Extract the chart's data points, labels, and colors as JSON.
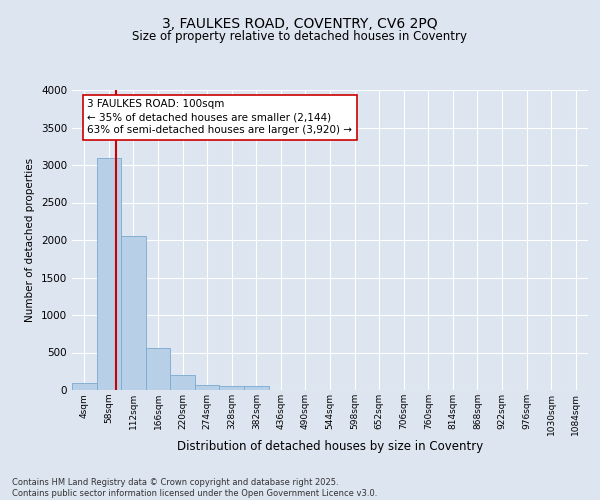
{
  "title_line1": "3, FAULKES ROAD, COVENTRY, CV6 2PQ",
  "title_line2": "Size of property relative to detached houses in Coventry",
  "xlabel": "Distribution of detached houses by size in Coventry",
  "ylabel": "Number of detached properties",
  "bin_labels": [
    "4sqm",
    "58sqm",
    "112sqm",
    "166sqm",
    "220sqm",
    "274sqm",
    "328sqm",
    "382sqm",
    "436sqm",
    "490sqm",
    "544sqm",
    "598sqm",
    "652sqm",
    "706sqm",
    "760sqm",
    "814sqm",
    "868sqm",
    "922sqm",
    "976sqm",
    "1030sqm",
    "1084sqm"
  ],
  "bar_heights": [
    100,
    3100,
    2050,
    555,
    195,
    65,
    60,
    60,
    0,
    0,
    0,
    0,
    0,
    0,
    0,
    0,
    0,
    0,
    0,
    0,
    0
  ],
  "bar_color": "#b8cfe8",
  "bar_edge_color": "#7aaad0",
  "vline_x": 1.28,
  "vline_color": "#cc0000",
  "ylim": [
    0,
    4000
  ],
  "yticks": [
    0,
    500,
    1000,
    1500,
    2000,
    2500,
    3000,
    3500,
    4000
  ],
  "annotation_text": "3 FAULKES ROAD: 100sqm\n← 35% of detached houses are smaller (2,144)\n63% of semi-detached houses are larger (3,920) →",
  "footer_line1": "Contains HM Land Registry data © Crown copyright and database right 2025.",
  "footer_line2": "Contains public sector information licensed under the Open Government Licence v3.0.",
  "bg_color": "#dde5f0",
  "plot_bg_color": "#dde5f0",
  "grid_color": "#ffffff"
}
